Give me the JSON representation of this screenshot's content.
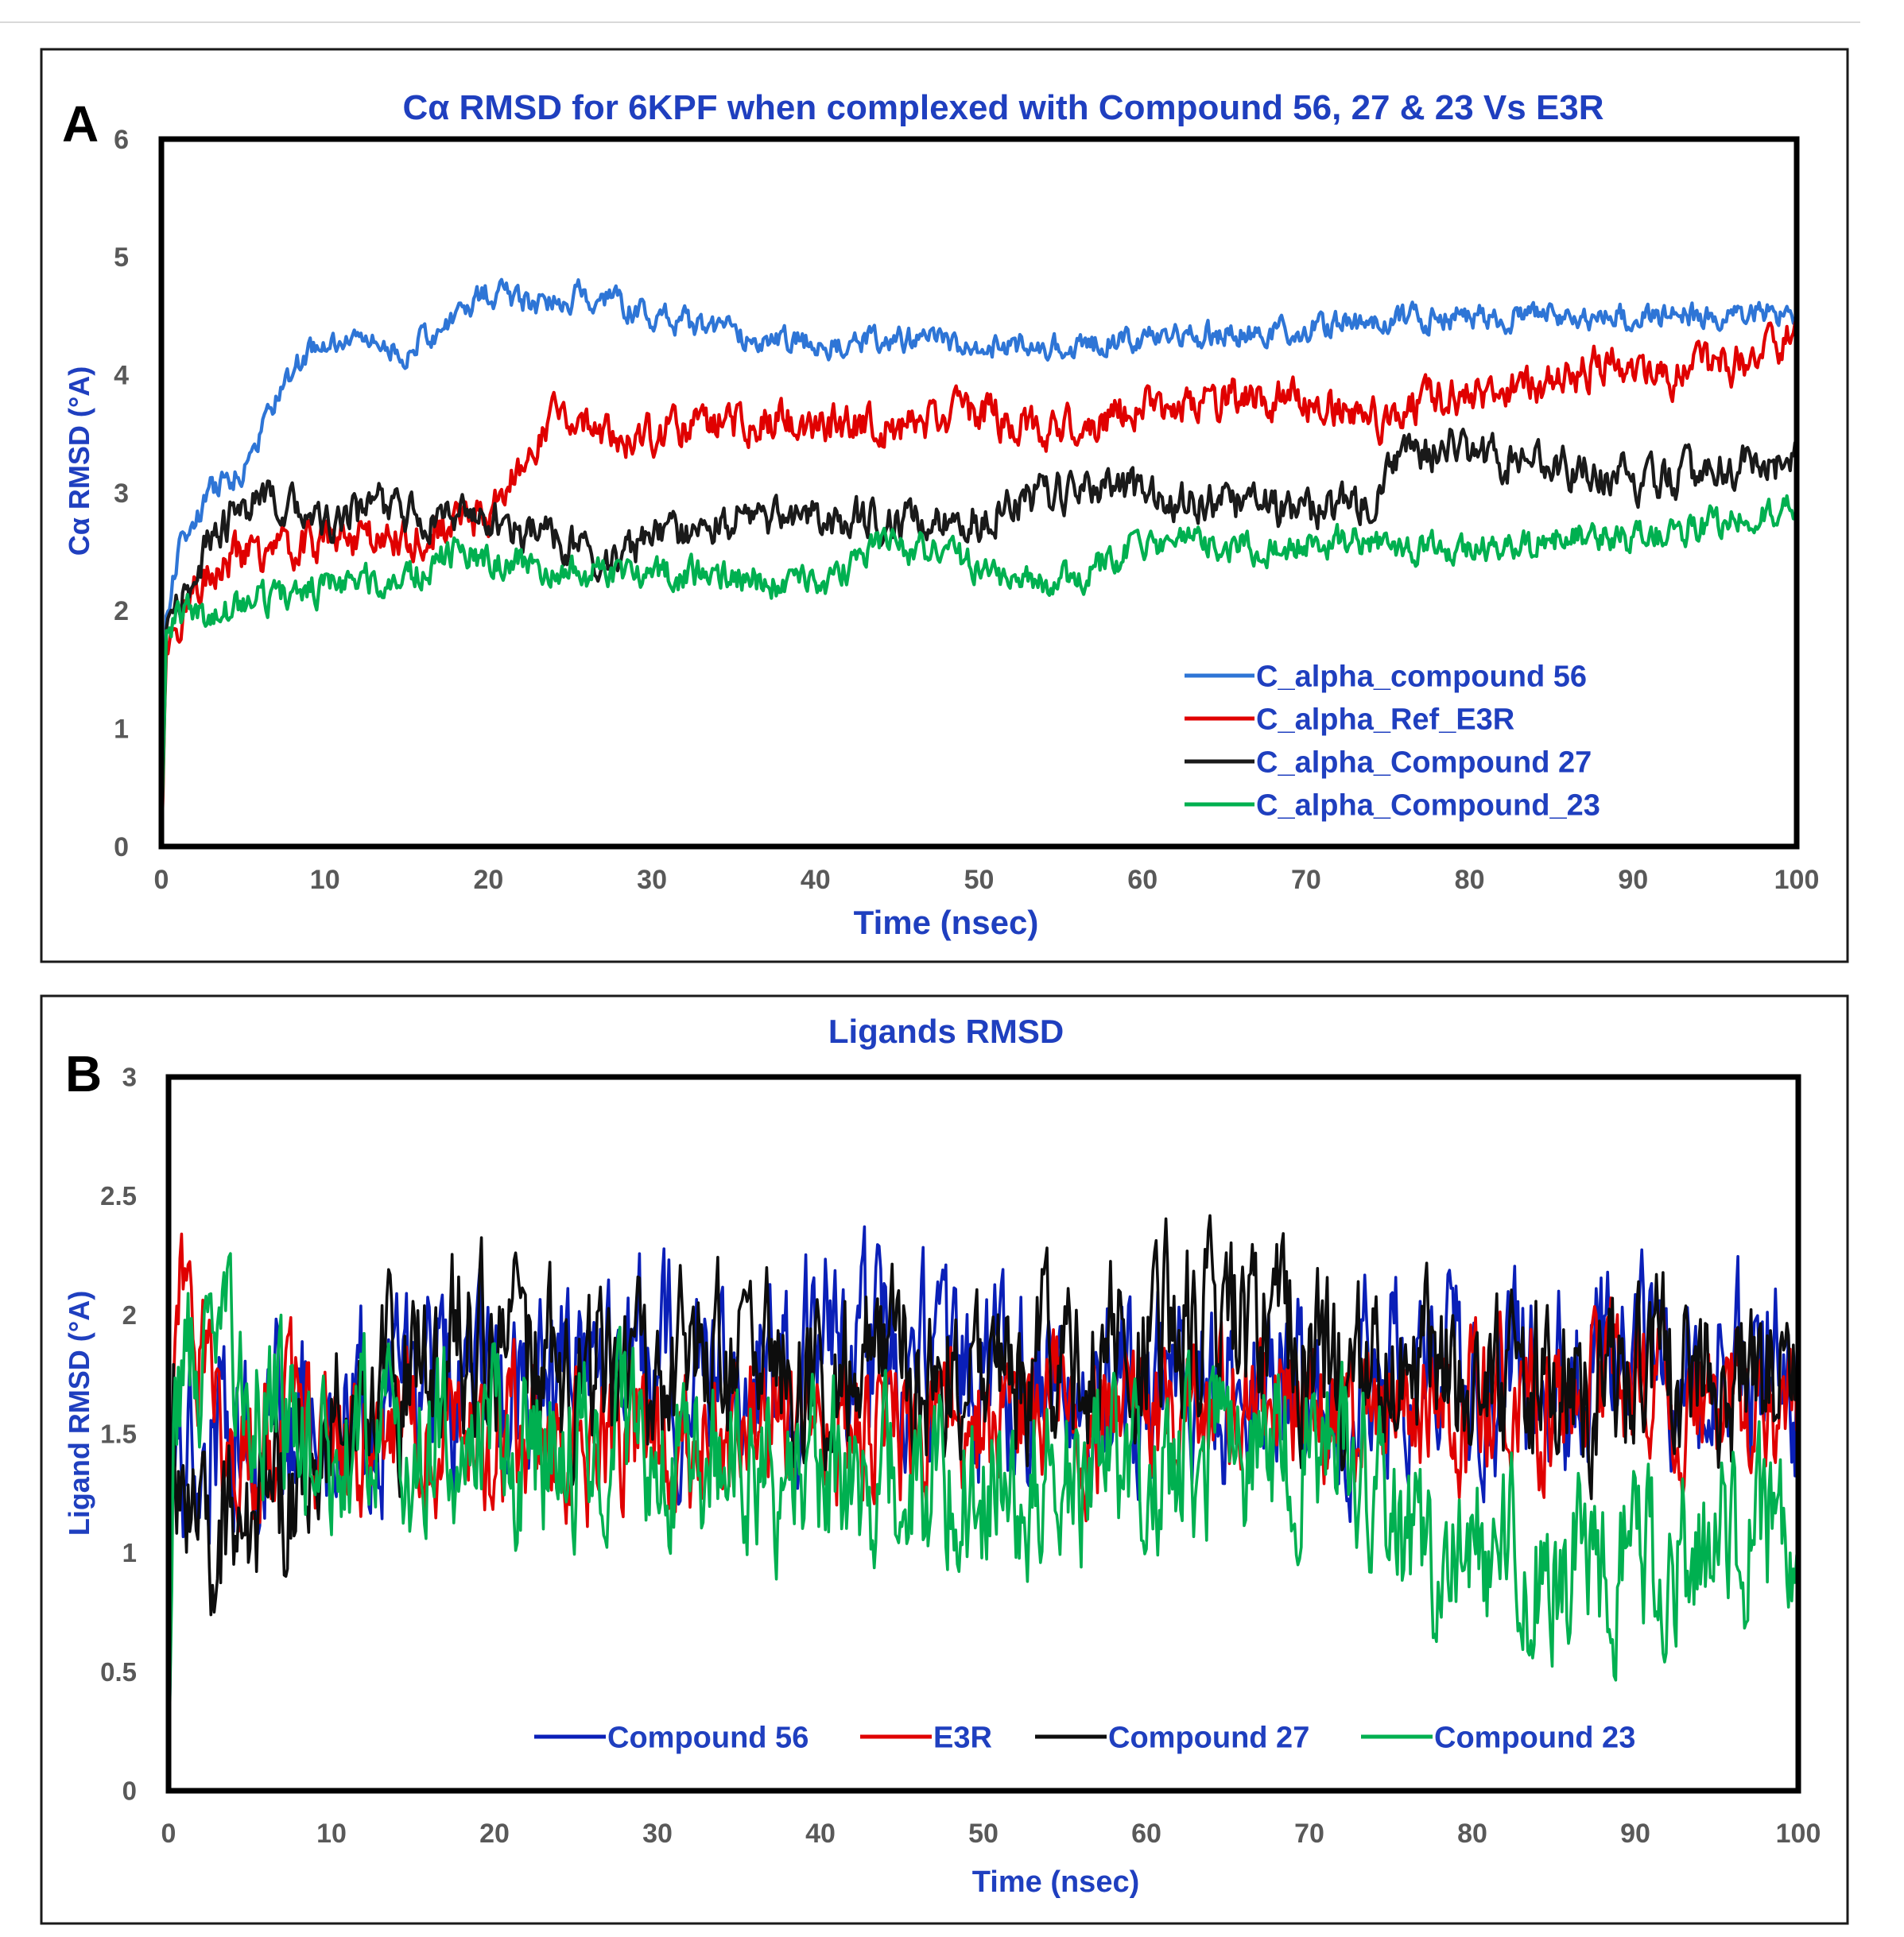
{
  "chart_data": [
    {
      "panel": "A",
      "type": "line",
      "title": "Cα RMSD for 6KPF when complexed  with Compound 56, 27 & 23 Vs E3R",
      "xlabel": "Time (nsec)",
      "ylabel": "Cα RMSD (°A)",
      "xlim": [
        0,
        100
      ],
      "ylim": [
        0,
        6
      ],
      "xticks": [
        0,
        10,
        20,
        30,
        40,
        50,
        60,
        70,
        80,
        90,
        100
      ],
      "yticks": [
        0,
        1,
        2,
        3,
        4,
        5,
        6
      ],
      "legend_position": "bottom-right",
      "series": [
        {
          "name": "C_alpha_compound 56",
          "color": "#2e75d6",
          "noise": 0.09,
          "trend": [
            [
              0,
              0
            ],
            [
              0.3,
              1.9
            ],
            [
              1,
              2.5
            ],
            [
              3,
              3.0
            ],
            [
              5,
              3.2
            ],
            [
              7,
              3.8
            ],
            [
              9,
              4.2
            ],
            [
              12,
              4.3
            ],
            [
              15,
              4.2
            ],
            [
              17,
              4.4
            ],
            [
              20,
              4.7
            ],
            [
              23,
              4.6
            ],
            [
              26,
              4.7
            ],
            [
              28,
              4.6
            ],
            [
              30,
              4.5
            ],
            [
              35,
              4.35
            ],
            [
              40,
              4.25
            ],
            [
              45,
              4.3
            ],
            [
              50,
              4.25
            ],
            [
              55,
              4.25
            ],
            [
              60,
              4.3
            ],
            [
              65,
              4.35
            ],
            [
              70,
              4.4
            ],
            [
              75,
              4.45
            ],
            [
              80,
              4.5
            ],
            [
              85,
              4.5
            ],
            [
              90,
              4.5
            ],
            [
              95,
              4.5
            ],
            [
              100,
              4.55
            ]
          ]
        },
        {
          "name": "C_alpha_Ref_E3R",
          "color": "#e00000",
          "noise": 0.14,
          "trend": [
            [
              0,
              0
            ],
            [
              0.3,
              1.7
            ],
            [
              1,
              1.9
            ],
            [
              3,
              2.4
            ],
            [
              6,
              2.5
            ],
            [
              10,
              2.6
            ],
            [
              15,
              2.6
            ],
            [
              20,
              2.8
            ],
            [
              22,
              3.2
            ],
            [
              24,
              3.7
            ],
            [
              27,
              3.5
            ],
            [
              30,
              3.5
            ],
            [
              35,
              3.6
            ],
            [
              40,
              3.6
            ],
            [
              45,
              3.55
            ],
            [
              50,
              3.7
            ],
            [
              52,
              3.6
            ],
            [
              55,
              3.55
            ],
            [
              60,
              3.7
            ],
            [
              65,
              3.8
            ],
            [
              70,
              3.8
            ],
            [
              73,
              3.7
            ],
            [
              75,
              3.6
            ],
            [
              78,
              3.8
            ],
            [
              82,
              3.9
            ],
            [
              85,
              3.9
            ],
            [
              88,
              4.1
            ],
            [
              92,
              4.0
            ],
            [
              96,
              4.1
            ],
            [
              100,
              4.3
            ]
          ]
        },
        {
          "name": "C_alpha_Compound 27",
          "color": "#1a1a1a",
          "noise": 0.14,
          "trend": [
            [
              0,
              0
            ],
            [
              0.3,
              1.8
            ],
            [
              1,
              2.0
            ],
            [
              3,
              2.6
            ],
            [
              5,
              2.9
            ],
            [
              8,
              2.9
            ],
            [
              10,
              2.7
            ],
            [
              13,
              2.9
            ],
            [
              16,
              2.8
            ],
            [
              20,
              2.8
            ],
            [
              25,
              2.55
            ],
            [
              28,
              2.45
            ],
            [
              32,
              2.7
            ],
            [
              36,
              2.8
            ],
            [
              40,
              2.8
            ],
            [
              45,
              2.75
            ],
            [
              50,
              2.8
            ],
            [
              54,
              3.0
            ],
            [
              58,
              3.05
            ],
            [
              62,
              2.95
            ],
            [
              66,
              2.9
            ],
            [
              70,
              2.85
            ],
            [
              74,
              2.9
            ],
            [
              76,
              3.3
            ],
            [
              79,
              3.4
            ],
            [
              83,
              3.25
            ],
            [
              87,
              3.2
            ],
            [
              91,
              3.1
            ],
            [
              95,
              3.2
            ],
            [
              100,
              3.25
            ]
          ]
        },
        {
          "name": "C_alpha_Compound_23",
          "color": "#00b050",
          "noise": 0.11,
          "trend": [
            [
              0,
              0
            ],
            [
              0.3,
              1.7
            ],
            [
              1,
              2.0
            ],
            [
              3,
              1.95
            ],
            [
              6,
              2.1
            ],
            [
              10,
              2.2
            ],
            [
              15,
              2.3
            ],
            [
              18,
              2.5
            ],
            [
              22,
              2.4
            ],
            [
              26,
              2.3
            ],
            [
              30,
              2.3
            ],
            [
              35,
              2.3
            ],
            [
              40,
              2.2
            ],
            [
              44,
              2.55
            ],
            [
              48,
              2.5
            ],
            [
              52,
              2.2
            ],
            [
              56,
              2.3
            ],
            [
              60,
              2.55
            ],
            [
              64,
              2.6
            ],
            [
              68,
              2.5
            ],
            [
              72,
              2.6
            ],
            [
              76,
              2.55
            ],
            [
              80,
              2.5
            ],
            [
              84,
              2.55
            ],
            [
              86,
              2.65
            ],
            [
              90,
              2.6
            ],
            [
              95,
              2.75
            ],
            [
              100,
              2.85
            ]
          ]
        }
      ]
    },
    {
      "panel": "B",
      "type": "line",
      "title": "Ligands RMSD",
      "xlabel": "Time (nsec)",
      "ylabel": "Ligand RMSD (°A)",
      "xlim": [
        0,
        100
      ],
      "ylim": [
        0,
        3
      ],
      "xticks": [
        0,
        10,
        20,
        30,
        40,
        50,
        60,
        70,
        80,
        90,
        100
      ],
      "yticks": [
        0,
        0.5,
        1,
        1.5,
        2,
        2.5,
        3
      ],
      "legend_position": "bottom",
      "series": [
        {
          "name": "Compound 56",
          "color": "#0a1fb8",
          "noise": 0.32,
          "trend": [
            [
              0,
              0
            ],
            [
              0.3,
              1.4
            ],
            [
              2,
              1.5
            ],
            [
              6,
              1.5
            ],
            [
              10,
              1.6
            ],
            [
              20,
              1.65
            ],
            [
              30,
              1.8
            ],
            [
              40,
              1.85
            ],
            [
              50,
              1.7
            ],
            [
              60,
              1.7
            ],
            [
              70,
              1.7
            ],
            [
              80,
              1.75
            ],
            [
              90,
              1.75
            ],
            [
              100,
              1.75
            ]
          ]
        },
        {
          "name": "E3R",
          "color": "#e00000",
          "noise": 0.26,
          "trend": [
            [
              0,
              0
            ],
            [
              0.3,
              1.6
            ],
            [
              1,
              2.2
            ],
            [
              3,
              1.5
            ],
            [
              10,
              1.5
            ],
            [
              20,
              1.45
            ],
            [
              30,
              1.5
            ],
            [
              40,
              1.5
            ],
            [
              50,
              1.55
            ],
            [
              60,
              1.6
            ],
            [
              70,
              1.6
            ],
            [
              80,
              1.6
            ],
            [
              90,
              1.65
            ],
            [
              100,
              1.6
            ]
          ]
        },
        {
          "name": "Compound 27",
          "color": "#0d0d0d",
          "noise": 0.3,
          "trend": [
            [
              0,
              0
            ],
            [
              0.3,
              1.3
            ],
            [
              3,
              1.1
            ],
            [
              6,
              1.2
            ],
            [
              10,
              1.5
            ],
            [
              18,
              1.9
            ],
            [
              25,
              1.75
            ],
            [
              35,
              1.75
            ],
            [
              45,
              1.75
            ],
            [
              55,
              1.8
            ],
            [
              62,
              1.95
            ],
            [
              68,
              2.0
            ],
            [
              72,
              1.7
            ],
            [
              80,
              1.75
            ],
            [
              90,
              1.75
            ],
            [
              100,
              1.7
            ]
          ]
        },
        {
          "name": "Compound 23",
          "color": "#00b050",
          "noise": 0.3,
          "trend": [
            [
              0,
              0
            ],
            [
              0.3,
              1.7
            ],
            [
              3,
              1.8
            ],
            [
              8,
              1.5
            ],
            [
              15,
              1.45
            ],
            [
              25,
              1.45
            ],
            [
              35,
              1.35
            ],
            [
              45,
              1.3
            ],
            [
              55,
              1.35
            ],
            [
              65,
              1.4
            ],
            [
              72,
              1.5
            ],
            [
              75,
              1.1
            ],
            [
              82,
              0.95
            ],
            [
              90,
              0.95
            ],
            [
              100,
              1.15
            ]
          ]
        }
      ]
    }
  ]
}
